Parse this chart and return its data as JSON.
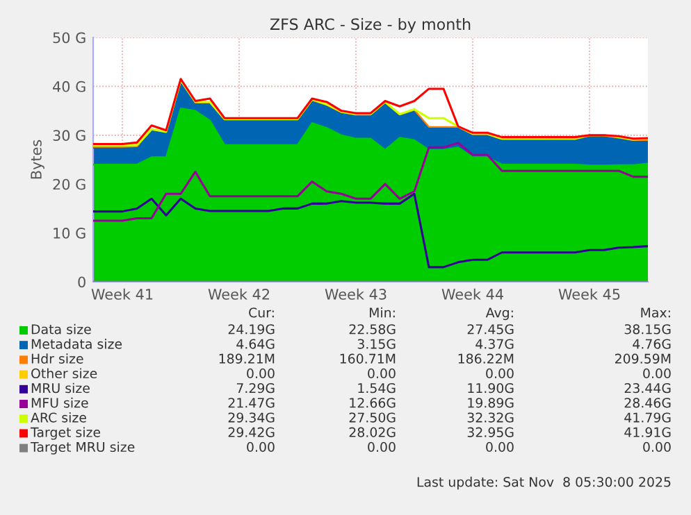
{
  "chart_data": {
    "type": "area",
    "stacked": true,
    "title": "ZFS ARC - Size - by month",
    "ylabel": "Bytes",
    "categories": [
      null,
      null,
      "Week 41",
      null,
      null,
      null,
      null,
      null,
      null,
      null,
      "Week 42",
      null,
      null,
      null,
      null,
      null,
      null,
      null,
      "Week 43",
      null,
      null,
      null,
      null,
      null,
      null,
      null,
      "Week 44",
      null,
      null,
      null,
      null,
      null,
      null,
      null,
      "Week 45",
      null,
      null,
      null,
      null
    ],
    "series": [
      {
        "name": "Data size",
        "color": "#00cc00",
        "values": [
          24,
          24,
          24,
          24,
          25.5,
          25.5,
          35.5,
          35,
          33,
          28,
          28,
          28,
          28,
          28,
          28,
          32.5,
          31.5,
          30,
          29.3,
          29.3,
          27,
          29.5,
          29,
          27,
          27,
          27.5,
          25.5,
          25.5,
          24,
          24,
          24,
          24,
          24,
          24,
          23.8,
          23.8,
          23.9,
          23.9,
          24.2
        ]
      },
      {
        "name": "Metadata size",
        "color": "#0066b3",
        "values": [
          3.4,
          3.4,
          3.4,
          3.5,
          5.5,
          5,
          5.5,
          1.5,
          3.5,
          5,
          5,
          5,
          5,
          5,
          5,
          4.5,
          4.5,
          4.5,
          4.7,
          4.7,
          9.5,
          4.5,
          6,
          4.5,
          4.5,
          4,
          4.5,
          4.5,
          5,
          5,
          5,
          5,
          5,
          5,
          5.9,
          5.9,
          5.4,
          4.9,
          4.6
        ]
      },
      {
        "name": "Hdr size",
        "color": "#ff8000",
        "values": [
          0.2,
          0.2,
          0.2,
          0.2,
          0.2,
          0.2,
          0.2,
          0.2,
          0.2,
          0.2,
          0.2,
          0.2,
          0.2,
          0.2,
          0.2,
          0.2,
          0.2,
          0.2,
          0.2,
          0.2,
          0.2,
          0.2,
          0.2,
          0.2,
          0.2,
          0.2,
          0.2,
          0.2,
          0.2,
          0.2,
          0.2,
          0.2,
          0.2,
          0.2,
          0.2,
          0.2,
          0.2,
          0.2,
          0.2
        ]
      },
      {
        "name": "Other size",
        "color": "#ffcc00",
        "values": [
          null,
          null,
          null,
          null,
          null,
          null,
          null,
          null,
          null,
          null,
          null,
          null,
          null,
          null,
          null,
          null,
          null,
          null,
          null,
          null,
          null,
          null,
          null,
          null,
          null,
          null,
          null,
          null,
          null,
          null,
          null,
          null,
          null,
          null,
          null,
          null,
          null,
          null,
          null
        ]
      },
      {
        "name": "MRU size",
        "type": "line",
        "color": "#330099",
        "values": [
          14.4,
          14.4,
          14.4,
          15,
          17,
          13.6,
          17,
          15,
          14.5,
          14.5,
          14.5,
          14.5,
          14.5,
          15,
          15,
          16,
          16,
          16.5,
          16.2,
          16.2,
          16,
          16,
          18,
          3,
          3,
          4,
          4.5,
          4.5,
          6,
          6,
          6,
          6,
          6,
          6,
          6.5,
          6.5,
          7,
          7.1,
          7.3
        ]
      },
      {
        "name": "MFU size",
        "type": "line",
        "color": "#990099",
        "values": [
          12.5,
          12.5,
          12.5,
          13,
          13,
          18,
          18,
          22.5,
          17.5,
          17.5,
          17.5,
          17.5,
          17.5,
          17.5,
          17.5,
          20.5,
          18.5,
          18,
          17,
          17,
          20,
          17,
          18.5,
          27.5,
          27.5,
          28.4,
          26,
          26,
          22.7,
          22.7,
          22.7,
          22.7,
          22.7,
          22.7,
          22.7,
          22.7,
          22.7,
          21.5,
          21.5
        ]
      },
      {
        "name": "ARC size",
        "type": "line",
        "color": "#ccff00",
        "values": [
          27.9,
          27.9,
          27.9,
          28,
          31.2,
          30.7,
          41.2,
          36.8,
          36.8,
          33.3,
          33.3,
          33.3,
          33.3,
          33.3,
          33.3,
          37.3,
          36.3,
          34.8,
          34.3,
          34.3,
          36.8,
          34.3,
          35.3,
          33.5,
          33.5,
          31.8,
          30.3,
          30.3,
          29.3,
          29.3,
          29.3,
          29.3,
          29.3,
          29.3,
          30,
          30,
          29.6,
          29.1,
          29.3
        ]
      },
      {
        "name": "Target size",
        "type": "line",
        "color": "#ff0000",
        "values": [
          28.2,
          28.2,
          28.2,
          28.5,
          32,
          31,
          41.5,
          37,
          37.5,
          33.5,
          33.5,
          33.5,
          33.5,
          33.5,
          33.5,
          37.5,
          36.8,
          35,
          34.5,
          34.5,
          37,
          35.9,
          37,
          39.5,
          39.5,
          31.8,
          30.5,
          30.5,
          29.6,
          29.6,
          29.6,
          29.6,
          29.6,
          29.6,
          30,
          30,
          29.8,
          29.3,
          29.4
        ]
      },
      {
        "name": "Target MRU size",
        "type": "line",
        "color": "#808080",
        "values": [
          0,
          0,
          0,
          0,
          0,
          0,
          0,
          0,
          0,
          0,
          0,
          0,
          0,
          0,
          0,
          0,
          0,
          0,
          0,
          0,
          0,
          0,
          0,
          0,
          0,
          0,
          0,
          0,
          0,
          0,
          0,
          0,
          0,
          0,
          0,
          0,
          0,
          0,
          0
        ]
      }
    ],
    "ylim": [
      0,
      50
    ],
    "yticks": [
      0,
      {
        "value": 10,
        "label": "10 G"
      },
      {
        "value": 20,
        "label": "20 G"
      },
      {
        "value": 30,
        "label": "30 G"
      },
      {
        "value": 40,
        "label": "40 G"
      },
      {
        "value": 50,
        "label": "50 G"
      }
    ],
    "grid": true,
    "legend": "bottom",
    "annotations": [
      "Cur:",
      "Min:",
      "Avg:",
      "Max:",
      "24.19G",
      "22.58G",
      "27.45G",
      "38.15G",
      "4.64G",
      "3.15G",
      "4.37G",
      "4.76G",
      "189.21M",
      "160.71M",
      "186.22M",
      "209.59M",
      "0.00",
      "0.00",
      "0.00",
      "0.00",
      "7.29G",
      "1.54G",
      "11.90G",
      "23.44G",
      "21.47G",
      "12.66G",
      "19.89G",
      "28.46G",
      "29.34G",
      "27.50G",
      "32.32G",
      "41.79G",
      "29.42G",
      "28.02G",
      "32.95G",
      "41.91G",
      "0.00",
      "0.00",
      "0.00",
      "0.00",
      "Last update: Sat Nov  8 05:30:00 2025"
    ]
  }
}
